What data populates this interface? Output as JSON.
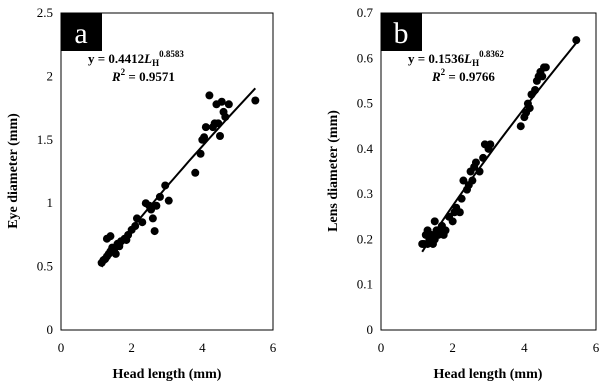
{
  "chart_data": [
    {
      "type": "scatter",
      "panel_label": "a",
      "xlabel": "Head length (mm)",
      "ylabel": "Eye diameter (mm)",
      "xlim": [
        0,
        6
      ],
      "ylim": [
        0,
        2.5
      ],
      "xticks": [
        "0",
        "2",
        "4",
        "6"
      ],
      "yticks": [
        "0",
        "0.5",
        "1",
        "1.5",
        "2",
        "2.5"
      ],
      "equation": {
        "prefix": "y = 0.4412",
        "var": "L",
        "sub": "H",
        "exp": "0.8583"
      },
      "r2": {
        "label": "R",
        "sup": "2",
        "value": " = 0.9571"
      },
      "fit": {
        "a": 0.4412,
        "b": 0.8583,
        "x_range": [
          1.15,
          5.5
        ]
      },
      "points": [
        [
          1.15,
          0.53
        ],
        [
          1.2,
          0.55
        ],
        [
          1.25,
          0.56
        ],
        [
          1.3,
          0.58
        ],
        [
          1.3,
          0.72
        ],
        [
          1.35,
          0.6
        ],
        [
          1.4,
          0.74
        ],
        [
          1.4,
          0.62
        ],
        [
          1.45,
          0.65
        ],
        [
          1.5,
          0.63
        ],
        [
          1.55,
          0.6
        ],
        [
          1.6,
          0.68
        ],
        [
          1.65,
          0.66
        ],
        [
          1.7,
          0.7
        ],
        [
          1.8,
          0.72
        ],
        [
          1.85,
          0.71
        ],
        [
          1.9,
          0.75
        ],
        [
          2.0,
          0.79
        ],
        [
          2.1,
          0.82
        ],
        [
          2.15,
          0.88
        ],
        [
          2.3,
          0.85
        ],
        [
          2.4,
          1.0
        ],
        [
          2.5,
          0.98
        ],
        [
          2.55,
          0.95
        ],
        [
          2.6,
          0.88
        ],
        [
          2.65,
          0.78
        ],
        [
          2.7,
          0.98
        ],
        [
          2.8,
          1.05
        ],
        [
          2.95,
          1.14
        ],
        [
          3.05,
          1.02
        ],
        [
          3.8,
          1.24
        ],
        [
          3.95,
          1.39
        ],
        [
          4.0,
          1.5
        ],
        [
          4.05,
          1.52
        ],
        [
          4.1,
          1.6
        ],
        [
          4.2,
          1.85
        ],
        [
          4.3,
          1.6
        ],
        [
          4.35,
          1.63
        ],
        [
          4.4,
          1.78
        ],
        [
          4.45,
          1.63
        ],
        [
          4.5,
          1.53
        ],
        [
          4.55,
          1.8
        ],
        [
          4.6,
          1.72
        ],
        [
          4.65,
          1.68
        ],
        [
          4.75,
          1.78
        ],
        [
          5.5,
          1.81
        ]
      ]
    },
    {
      "type": "scatter",
      "panel_label": "b",
      "xlabel": "Head length (mm)",
      "ylabel": "Lens diameter (mm)",
      "xlim": [
        0,
        6
      ],
      "ylim": [
        0,
        0.7
      ],
      "xticks": [
        "0",
        "2",
        "4",
        "6"
      ],
      "yticks": [
        "0",
        "0.1",
        "0.2",
        "0.3",
        "0.4",
        "0.5",
        "0.6",
        "0.7"
      ],
      "equation": {
        "prefix": "y = 0.1536",
        "var": "L",
        "sub": "H",
        "exp": "0.8362"
      },
      "r2": {
        "label": "R",
        "sup": "2",
        "value": " = 0.9766"
      },
      "fit": {
        "a": 0.1536,
        "b": 0.8362,
        "x_range": [
          1.15,
          5.5
        ]
      },
      "points": [
        [
          1.15,
          0.19
        ],
        [
          1.2,
          0.19
        ],
        [
          1.25,
          0.21
        ],
        [
          1.3,
          0.22
        ],
        [
          1.3,
          0.19
        ],
        [
          1.35,
          0.2
        ],
        [
          1.4,
          0.21
        ],
        [
          1.45,
          0.19
        ],
        [
          1.5,
          0.2
        ],
        [
          1.5,
          0.24
        ],
        [
          1.55,
          0.22
        ],
        [
          1.6,
          0.21
        ],
        [
          1.65,
          0.22
        ],
        [
          1.7,
          0.23
        ],
        [
          1.75,
          0.21
        ],
        [
          1.8,
          0.22
        ],
        [
          1.9,
          0.25
        ],
        [
          2.0,
          0.24
        ],
        [
          2.05,
          0.26
        ],
        [
          2.1,
          0.27
        ],
        [
          2.2,
          0.26
        ],
        [
          2.25,
          0.29
        ],
        [
          2.3,
          0.33
        ],
        [
          2.4,
          0.31
        ],
        [
          2.45,
          0.32
        ],
        [
          2.5,
          0.35
        ],
        [
          2.55,
          0.33
        ],
        [
          2.6,
          0.36
        ],
        [
          2.65,
          0.37
        ],
        [
          2.75,
          0.35
        ],
        [
          2.85,
          0.38
        ],
        [
          2.9,
          0.41
        ],
        [
          3.0,
          0.4
        ],
        [
          3.05,
          0.41
        ],
        [
          3.9,
          0.45
        ],
        [
          4.0,
          0.47
        ],
        [
          4.05,
          0.48
        ],
        [
          4.1,
          0.5
        ],
        [
          4.15,
          0.49
        ],
        [
          4.2,
          0.52
        ],
        [
          4.3,
          0.53
        ],
        [
          4.35,
          0.55
        ],
        [
          4.4,
          0.56
        ],
        [
          4.45,
          0.57
        ],
        [
          4.5,
          0.56
        ],
        [
          4.55,
          0.58
        ],
        [
          4.6,
          0.58
        ],
        [
          5.45,
          0.64
        ]
      ]
    }
  ]
}
